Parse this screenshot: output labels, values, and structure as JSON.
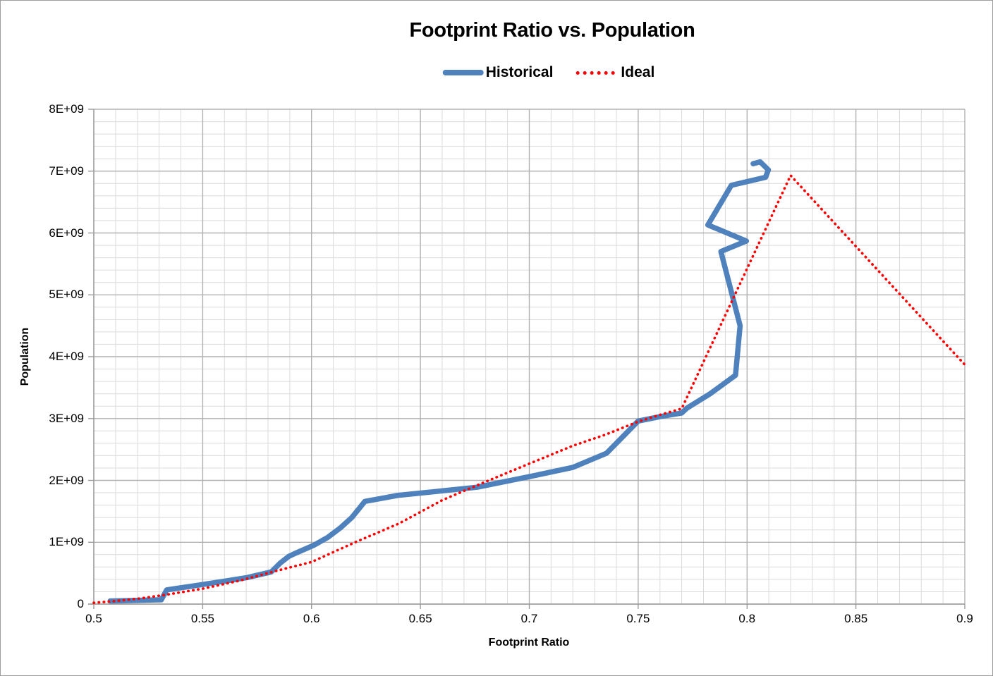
{
  "header": {
    "title": "Footprint Ratio vs. Population"
  },
  "legend": {
    "items": [
      {
        "label": "Historical",
        "color": "#4F81BD",
        "style": "solid"
      },
      {
        "label": "Ideal",
        "color": "#FF0000",
        "style": "dotted"
      }
    ]
  },
  "axes": {
    "x_label": "Footprint Ratio",
    "y_label": "Population"
  },
  "colors": {
    "minor_grid": "#dbdbdb",
    "major_grid": "#b1b1b1",
    "axis": "#9b9b9b",
    "historical": "#4F81BD",
    "ideal": "#FF0000"
  },
  "chart_data": {
    "type": "line",
    "title": "Footprint Ratio vs. Population",
    "xlabel": "Footprint Ratio",
    "ylabel": "Population",
    "xlim": [
      0.5,
      0.9
    ],
    "ylim": [
      0,
      8000000000.0
    ],
    "x_major_step": 0.05,
    "x_minor_step": 0.01,
    "y_major_step": 1000000000.0,
    "y_minor_step": 200000000.0,
    "x_tick_labels": [
      "0.5",
      "0.55",
      "0.6",
      "0.65",
      "0.7",
      "0.75",
      "0.8",
      "0.85",
      "0.9"
    ],
    "y_tick_labels": [
      "0",
      "1E+09",
      "2E+09",
      "3E+09",
      "4E+09",
      "5E+09",
      "6E+09",
      "7E+09",
      "8E+09"
    ],
    "grid": true,
    "legend_position": "top",
    "series": [
      {
        "name": "Historical",
        "color": "#4F81BD",
        "style": "solid",
        "stroke_width": 7.5,
        "points": [
          [
            0.5075,
            50000000.0
          ],
          [
            0.531,
            70000000.0
          ],
          [
            0.5335,
            230000000.0
          ],
          [
            0.545,
            290000000.0
          ],
          [
            0.558,
            360000000.0
          ],
          [
            0.5705,
            430000000.0
          ],
          [
            0.5815,
            520000000.0
          ],
          [
            0.5855,
            660000000.0
          ],
          [
            0.5895,
            770000000.0
          ],
          [
            0.5925,
            820000000.0
          ],
          [
            0.601,
            950000000.0
          ],
          [
            0.6045,
            1020000000.0
          ],
          [
            0.6075,
            1080000000.0
          ],
          [
            0.6135,
            1240000000.0
          ],
          [
            0.6185,
            1400000000.0
          ],
          [
            0.6245,
            1660000000.0
          ],
          [
            0.64,
            1760000000.0
          ],
          [
            0.657,
            1820000000.0
          ],
          [
            0.676,
            1890000000.0
          ],
          [
            0.7,
            2060000000.0
          ],
          [
            0.72,
            2210000000.0
          ],
          [
            0.7355,
            2440000000.0
          ],
          [
            0.75,
            2960000000.0
          ],
          [
            0.76,
            3030000000.0
          ],
          [
            0.77,
            3090000000.0
          ],
          [
            0.7725,
            3170000000.0
          ],
          [
            0.783,
            3400000000.0
          ],
          [
            0.7947,
            3700000000.0
          ],
          [
            0.7968,
            4500000000.0
          ],
          [
            0.788,
            5700000000.0
          ],
          [
            0.7997,
            5870000000.0
          ],
          [
            0.782,
            6130000000.0
          ],
          [
            0.7928,
            6770000000.0
          ],
          [
            0.8085,
            6900000000.0
          ],
          [
            0.8098,
            7020000000.0
          ],
          [
            0.806,
            7150000000.0
          ],
          [
            0.8028,
            7120000000.0
          ]
        ]
      },
      {
        "name": "Ideal",
        "color": "#FF0000",
        "style": "dotted",
        "stroke_width": 3.6,
        "points": [
          [
            0.5,
            20000000.0
          ],
          [
            0.51,
            50000000.0
          ],
          [
            0.521,
            90000000.0
          ],
          [
            0.533,
            150000000.0
          ],
          [
            0.55,
            250000000.0
          ],
          [
            0.567,
            380000000.0
          ],
          [
            0.583,
            530000000.0
          ],
          [
            0.6,
            680000000.0
          ],
          [
            0.62,
            1000000000.0
          ],
          [
            0.64,
            1300000000.0
          ],
          [
            0.66,
            1680000000.0
          ],
          [
            0.68,
            1980000000.0
          ],
          [
            0.7,
            2270000000.0
          ],
          [
            0.72,
            2560000000.0
          ],
          [
            0.735,
            2740000000.0
          ],
          [
            0.75,
            2950000000.0
          ],
          [
            0.76,
            3060000000.0
          ],
          [
            0.77,
            3160000000.0
          ],
          [
            0.82,
            6930000000.0
          ],
          [
            0.9,
            3870000000.0
          ]
        ]
      }
    ]
  }
}
